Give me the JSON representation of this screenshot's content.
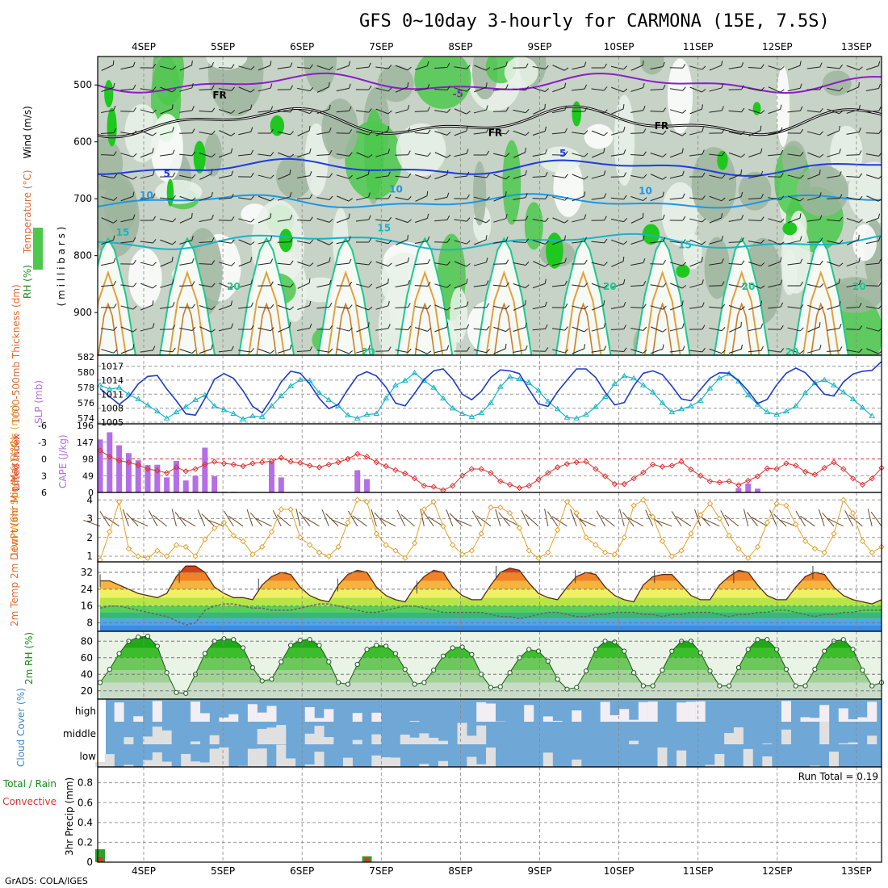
{
  "title": "GFS 0~10day 3-hourly for CARMONA (15E, 7.5S)",
  "footer": "GrADS: COLA/IGES",
  "colors": {
    "rh_dark": "#9db59d",
    "rh_mid": "#c6d3c6",
    "rh_light": "#eaf2ea",
    "rh_green": "#4cc84c",
    "rh_green_dark": "#1ec81e",
    "temp_purple": "#8c1cc8",
    "temp_blue": "#1e3cdc",
    "temp_cyan1": "#1e96e6",
    "temp_teal": "#18b4c8",
    "temp_green": "#1ec890",
    "temp_orange": "#e6a03c",
    "thickness": "#18b4c8",
    "slp": "#1e3cc8",
    "cape": "#b46ee6",
    "lifted": "#dc3232",
    "wind_speed": "#e6a02a",
    "cloud_blue": "#6fa8d6",
    "cloud_white": "#f2eef4",
    "cloud_grey": "#e0e0e0",
    "rain_green": "#2ca02c",
    "rain_red": "#e03030"
  },
  "chart_data": [
    {
      "id": "upper-air",
      "type": "heatmap",
      "ylabel_parts": [
        "RH (%)",
        "Temperature (°C)",
        "Wind (m/s)"
      ],
      "ylabel2": "( m i l l i b a r s )",
      "y_ticks": [
        500,
        600,
        700,
        800,
        900
      ],
      "ylim": [
        450,
        975
      ],
      "x_ticks": [
        "4SEP",
        "5SEP",
        "6SEP",
        "7SEP",
        "8SEP",
        "9SEP",
        "10SEP",
        "11SEP",
        "12SEP",
        "13SEP"
      ],
      "contour_labels": [
        {
          "text": "-5",
          "day": 3.9,
          "p": 522,
          "color": "temp_purple"
        },
        {
          "text": "FR",
          "day": 0.87,
          "p": 524,
          "color": "#000"
        },
        {
          "text": "FR",
          "day": 4.35,
          "p": 590,
          "color": "#000"
        },
        {
          "text": "FR",
          "day": 6.45,
          "p": 578,
          "color": "#000"
        },
        {
          "text": "5",
          "day": 0.25,
          "p": 662,
          "color": "temp_blue"
        },
        {
          "text": "5",
          "day": 5.25,
          "p": 626,
          "color": "temp_blue"
        },
        {
          "text": "10",
          "day": -0.05,
          "p": 700,
          "color": "temp_cyan1"
        },
        {
          "text": "10",
          "day": 3.1,
          "p": 689,
          "color": "temp_cyan1"
        },
        {
          "text": "10",
          "day": 6.25,
          "p": 692,
          "color": "temp_cyan1"
        },
        {
          "text": "15",
          "day": -0.35,
          "p": 765,
          "color": "temp_teal"
        },
        {
          "text": "15",
          "day": 2.95,
          "p": 757,
          "color": "temp_teal"
        },
        {
          "text": "15",
          "day": 6.75,
          "p": 787,
          "color": "temp_teal"
        },
        {
          "text": "20",
          "day": 5.8,
          "p": 860,
          "color": "temp_green"
        },
        {
          "text": "20",
          "day": 1.05,
          "p": 860,
          "color": "temp_green"
        },
        {
          "text": "20",
          "day": 8.95,
          "p": 860,
          "color": "temp_green"
        },
        {
          "text": "20",
          "day": 7.55,
          "p": 860,
          "color": "temp_green"
        },
        {
          "text": "20",
          "day": 2.75,
          "p": 975,
          "color": "temp_green"
        },
        {
          "text": "20",
          "day": 8.1,
          "p": 975,
          "color": "temp_green"
        }
      ],
      "isotherms": [
        {
          "level": -5,
          "color": "temp_purple",
          "base_p": 497,
          "amp": 12,
          "phase": 0.3
        },
        {
          "level": 0,
          "color": "#000000",
          "base_p": 565,
          "amp": 18,
          "phase": 1.1
        },
        {
          "level": 5,
          "color": "temp_blue",
          "base_p": 645,
          "amp": 10,
          "phase": 0.8
        },
        {
          "level": 10,
          "color": "temp_cyan1",
          "base_p": 705,
          "amp": 9,
          "phase": 2.0
        },
        {
          "level": 15,
          "color": "temp_teal",
          "base_p": 775,
          "amp": 10,
          "phase": 0.5
        }
      ]
    },
    {
      "id": "thickness-slp",
      "type": "line",
      "ylabel_left": "1000-500mb Thickness (dm)",
      "ylabel_right": "SLP (mb)",
      "left_ticks": [
        574,
        576,
        578,
        580,
        582
      ],
      "right_ticks": [
        1005,
        1008,
        1011,
        1014,
        1017
      ],
      "left_lim": [
        573.5,
        582
      ],
      "right_lim": [
        1005,
        1019
      ],
      "thickness": [
        578.3,
        577.8,
        578.0,
        577.1,
        576.5,
        575.7,
        574.9,
        574.0,
        574.8,
        575.5,
        576.4,
        577.0,
        575.6,
        575.1,
        574.6,
        573.9,
        574.3,
        574.2,
        575.6,
        576.9,
        578.2,
        579.0,
        578.9,
        577.3,
        576.4,
        575.6,
        574.4,
        574.0,
        574.5,
        574.6,
        576.6,
        578.3,
        578.9,
        579.9,
        578.9,
        578.0,
        576.6,
        575.3,
        574.6,
        574.2,
        574.7,
        576.0,
        578.1,
        579.4,
        579.1,
        578.6,
        577.6,
        576.2,
        575.2,
        574.1,
        574.0,
        574.5,
        575.5,
        576.8,
        578.5,
        579.5,
        579.2,
        578.3,
        577.4,
        576.0,
        574.8,
        575.2,
        575.6,
        576.3,
        577.9,
        579.2,
        579.8,
        578.8,
        577.0,
        575.8,
        574.8,
        574.5,
        574.9,
        575.6,
        577.3,
        578.6,
        579.0,
        578.3,
        577.4,
        576.5,
        575.4,
        574.3
      ],
      "slp": [
        1012.2,
        1010.5,
        1008.8,
        1010.4,
        1013.2,
        1014.8,
        1015.0,
        1012.1,
        1009.6,
        1006.8,
        1006.5,
        1010.1,
        1014.2,
        1015.4,
        1014.4,
        1011.7,
        1008.4,
        1007.0,
        1010.1,
        1013.6,
        1015.9,
        1015.5,
        1013.2,
        1010.1,
        1007.9,
        1008.8,
        1012.0,
        1014.9,
        1015.8,
        1014.9,
        1012.5,
        1009.1,
        1008.5,
        1011.2,
        1014.1,
        1016.0,
        1016.4,
        1014.2,
        1011.0,
        1009.8,
        1011.6,
        1014.6,
        1016.2,
        1016.0,
        1015.4,
        1012.0,
        1008.9,
        1008.4,
        1011.5,
        1014.0,
        1016.4,
        1016.4,
        1014.6,
        1011.4,
        1008.7,
        1009.2,
        1012.8,
        1015.5,
        1016.0,
        1015.2,
        1012.7,
        1010.0,
        1009.6,
        1012.0,
        1014.4,
        1015.6,
        1015.5,
        1013.9,
        1011.7,
        1009.0,
        1009.9,
        1013.0,
        1015.5,
        1016.6,
        1015.6,
        1013.4,
        1011.0,
        1010.6,
        1013.6,
        1015.3,
        1015.9,
        1016.1,
        1018.0
      ]
    },
    {
      "id": "cape-li",
      "type": "bar",
      "ylabel_left": "Lifted Index",
      "ylabel_right": "CAPE (J/kg)",
      "left_ticks": [
        6,
        3,
        0,
        -3,
        -6
      ],
      "right_ticks": [
        0,
        49,
        98,
        147,
        196
      ],
      "cape": [
        155,
        176,
        138,
        115,
        94,
        80,
        81,
        44,
        92,
        35,
        49,
        131,
        48,
        2,
        2,
        0,
        0,
        0,
        90,
        44,
        0,
        0,
        0,
        0,
        0,
        0,
        0,
        65,
        39,
        0,
        0,
        0,
        0,
        0,
        0,
        0,
        0,
        0,
        0,
        0,
        0,
        0,
        0,
        0,
        0,
        0,
        0,
        0,
        0,
        0,
        0,
        0,
        0,
        0,
        0,
        0,
        0,
        0,
        0,
        0,
        0,
        0,
        0,
        0,
        0,
        0,
        0,
        13,
        26,
        11,
        0,
        0,
        0,
        0,
        0,
        0,
        0,
        0,
        0,
        0,
        0,
        0,
        0
      ],
      "lifted": [
        -1.5,
        -0.4,
        0.3,
        0.6,
        1.1,
        1.8,
        2.1,
        2.5,
        1.5,
        2.2,
        1.8,
        1.0,
        0.5,
        0.8,
        1.0,
        1.3,
        0.8,
        0.6,
        0.4,
        -0.2,
        0.5,
        0.7,
        1.2,
        1.5,
        1.0,
        0.6,
        0.0,
        -0.9,
        -0.4,
        0.6,
        1.3,
        2.0,
        2.6,
        3.5,
        4.8,
        5.0,
        5.6,
        4.8,
        3.0,
        1.8,
        1.8,
        2.5,
        4.0,
        4.6,
        5.2,
        4.8,
        3.7,
        2.5,
        1.5,
        0.9,
        0.6,
        0.5,
        1.8,
        3.1,
        4.5,
        4.5,
        3.5,
        2.4,
        1.0,
        1.4,
        1.2,
        0.5,
        1.9,
        3.0,
        4.0,
        4.2,
        4.0,
        4.7,
        3.9,
        3.1,
        1.7,
        1.8,
        0.8,
        1.2,
        2.3,
        2.8,
        1.6,
        0.6,
        1.8,
        3.5,
        4.6,
        3.5,
        1.6
      ]
    },
    {
      "id": "wind",
      "type": "line",
      "ylabel": "10m Wind Speed & Barbs (m/s)",
      "y_ticks": [
        1,
        2,
        3,
        4
      ],
      "ylim": [
        0.7,
        4.4
      ],
      "speed": [
        0.8,
        2.3,
        3.9,
        1.4,
        1.0,
        0.9,
        1.3,
        1.0,
        1.6,
        1.5,
        1.0,
        1.9,
        2.5,
        2.8,
        2.1,
        1.8,
        1.1,
        1.5,
        2.3,
        3.5,
        3.5,
        2.0,
        1.6,
        1.2,
        1.0,
        1.5,
        2.8,
        4.0,
        3.9,
        2.2,
        1.6,
        1.3,
        0.9,
        1.7,
        3.5,
        3.9,
        2.6,
        1.6,
        1.1,
        1.3,
        2.2,
        3.6,
        3.6,
        3.3,
        2.5,
        1.3,
        0.9,
        1.2,
        2.4,
        3.9,
        3.3,
        2.0,
        1.6,
        1.2,
        1.1,
        2.0,
        3.7,
        4.0,
        3.1,
        1.8,
        1.0,
        1.3,
        2.2,
        3.2,
        3.8,
        3.0,
        2.1,
        1.4,
        0.9,
        1.5,
        2.8,
        3.8,
        3.7,
        2.7,
        1.8,
        1.4,
        1.2,
        2.2,
        4.0,
        3.3,
        1.8,
        1.2,
        1.5
      ]
    },
    {
      "id": "temperature",
      "type": "area",
      "ylabel": "2m Temp 2m DewPt (6hr Min/Max) (°C)",
      "y_ticks": [
        8,
        16,
        24,
        32
      ],
      "ylim": [
        4,
        37
      ],
      "temp": [
        28,
        28,
        26,
        24,
        22,
        21,
        20,
        22,
        30,
        35,
        35,
        32,
        25,
        22,
        20,
        20,
        19,
        26,
        30,
        32,
        31,
        25,
        21,
        19,
        18,
        26,
        31,
        33,
        32,
        25,
        21,
        19,
        18,
        25,
        30,
        33,
        32,
        25,
        21,
        19,
        19,
        26,
        32,
        34,
        33,
        27,
        22,
        20,
        19,
        25,
        30,
        32,
        31,
        25,
        21,
        19,
        18,
        26,
        30,
        31,
        31,
        26,
        21,
        19,
        19,
        26,
        30,
        33,
        32,
        26,
        21,
        19,
        19,
        25,
        30,
        32,
        31,
        25,
        21,
        19,
        18,
        17,
        19
      ],
      "dewpt": [
        15,
        16,
        16,
        15,
        14,
        13,
        12,
        11,
        9,
        7,
        8,
        14,
        16,
        17,
        17,
        16,
        15,
        15,
        14,
        14,
        14,
        15,
        16,
        17,
        17,
        16,
        15,
        14,
        13,
        13,
        14,
        15,
        16,
        16,
        15,
        14,
        13,
        13,
        13,
        13,
        13,
        12,
        11,
        11,
        10,
        11,
        12,
        13,
        13,
        12,
        11,
        11,
        12,
        12,
        13,
        13,
        13,
        12,
        12,
        11,
        12,
        12,
        13,
        13,
        13,
        12,
        11,
        12,
        12,
        13,
        13,
        14,
        14,
        13,
        12,
        11,
        12,
        12,
        13,
        13,
        14,
        14,
        14
      ]
    },
    {
      "id": "rh2m",
      "type": "area",
      "ylabel": "2m RH (%)",
      "y_ticks": [
        20,
        40,
        60,
        80
      ],
      "ylim": [
        10,
        92
      ],
      "rh": [
        30,
        46,
        65,
        80,
        85,
        86,
        74,
        42,
        18,
        17,
        40,
        65,
        80,
        83,
        82,
        72,
        48,
        32,
        34,
        55,
        75,
        81,
        82,
        75,
        55,
        30,
        28,
        52,
        70,
        75,
        74,
        65,
        46,
        28,
        30,
        45,
        62,
        72,
        73,
        64,
        40,
        24,
        25,
        42,
        60,
        70,
        68,
        56,
        34,
        22,
        24,
        44,
        70,
        80,
        79,
        68,
        42,
        26,
        26,
        45,
        68,
        80,
        80,
        66,
        44,
        26,
        26,
        48,
        70,
        82,
        82,
        70,
        46,
        26,
        26,
        46,
        68,
        80,
        82,
        70,
        45,
        26,
        30
      ]
    },
    {
      "id": "cloud",
      "type": "heatmap",
      "ylabel": "Cloud Cover (%)",
      "levels": [
        "high",
        "middle",
        "low"
      ]
    },
    {
      "id": "precip",
      "type": "bar",
      "ylabel_left": "Total / Rain",
      "ylabel_left2": "Convective",
      "ylabel": "3hr Precip (mm)",
      "y_ticks": [
        0,
        0.2,
        0.4,
        0.6,
        0.8
      ],
      "ylim": [
        0,
        0.96
      ],
      "run_total_label": "Run Total = 0.19",
      "total": [
        0.13,
        0,
        0,
        0,
        0,
        0,
        0,
        0,
        0,
        0,
        0,
        0,
        0,
        0,
        0,
        0,
        0,
        0,
        0,
        0,
        0,
        0,
        0,
        0,
        0,
        0,
        0,
        0,
        0.06,
        0,
        0,
        0,
        0,
        0,
        0,
        0,
        0,
        0,
        0,
        0,
        0,
        0,
        0,
        0,
        0,
        0,
        0,
        0,
        0,
        0,
        0,
        0,
        0,
        0,
        0,
        0,
        0,
        0,
        0,
        0,
        0,
        0,
        0,
        0,
        0,
        0,
        0,
        0,
        0,
        0,
        0,
        0,
        0,
        0,
        0,
        0,
        0,
        0,
        0,
        0,
        0,
        0,
        0
      ],
      "convective": [
        0.05,
        0,
        0,
        0,
        0,
        0,
        0,
        0,
        0,
        0,
        0,
        0,
        0,
        0,
        0,
        0,
        0,
        0,
        0,
        0,
        0,
        0,
        0,
        0,
        0,
        0,
        0,
        0,
        0.04,
        0,
        0,
        0,
        0,
        0,
        0,
        0,
        0,
        0,
        0,
        0,
        0,
        0,
        0,
        0,
        0,
        0,
        0,
        0,
        0,
        0,
        0,
        0,
        0,
        0,
        0,
        0,
        0,
        0,
        0,
        0,
        0,
        0,
        0,
        0,
        0,
        0,
        0,
        0,
        0,
        0,
        0,
        0,
        0,
        0,
        0,
        0,
        0,
        0,
        0,
        0,
        0,
        0,
        0
      ]
    }
  ]
}
